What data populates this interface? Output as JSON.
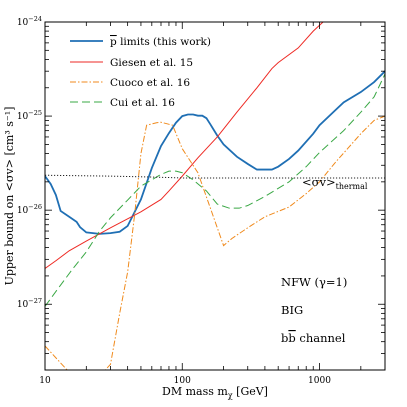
{
  "chart_data": {
    "type": "line",
    "xlabel": "DM mass m",
    "xlabel_sub": "χ",
    "xlabel_unit": " [GeV]",
    "ylabel": "Upper bound on <σv> [cm³ s⁻¹]",
    "xscale": "log",
    "yscale": "log",
    "xlim": [
      10,
      3000
    ],
    "ylim": [
      2e-28,
      1e-24
    ],
    "x_ticks": [
      {
        "value": 10,
        "label": "10"
      },
      {
        "value": 100,
        "label": "100"
      },
      {
        "value": 1000,
        "label": "1000"
      }
    ],
    "y_ticks": [
      {
        "value": 1e-24,
        "base": "10",
        "exp": "−24"
      },
      {
        "value": 1e-25,
        "base": "10",
        "exp": "−25"
      },
      {
        "value": 1e-26,
        "base": "10",
        "exp": "−26"
      },
      {
        "value": 1e-27,
        "base": "10",
        "exp": "−27"
      }
    ],
    "legend_position": "top-left",
    "series": [
      {
        "name": "p limits (this work)",
        "color": "#1f6fb4",
        "dash": "solid",
        "points": [
          [
            10,
            2.3e-26
          ],
          [
            11,
            1.9e-26
          ],
          [
            12,
            1.45e-26
          ],
          [
            13,
            9.8e-27
          ],
          [
            15,
            8.5e-27
          ],
          [
            17,
            7.5e-27
          ],
          [
            18,
            6.6e-27
          ],
          [
            20,
            5.8e-27
          ],
          [
            25,
            5.6e-27
          ],
          [
            30,
            5.7e-27
          ],
          [
            35,
            5.9e-27
          ],
          [
            40,
            6.8e-27
          ],
          [
            50,
            1.3e-26
          ],
          [
            60,
            2.8e-26
          ],
          [
            70,
            4.8e-26
          ],
          [
            80,
            6.6e-26
          ],
          [
            90,
            8.5e-26
          ],
          [
            100,
            1e-25
          ],
          [
            110,
            1.04e-25
          ],
          [
            120,
            1.04e-25
          ],
          [
            130,
            1.01e-25
          ],
          [
            140,
            1.01e-25
          ],
          [
            150,
            9.5e-26
          ],
          [
            160,
            8.2e-26
          ],
          [
            180,
            6.2e-26
          ],
          [
            200,
            5e-26
          ],
          [
            250,
            3.7e-26
          ],
          [
            300,
            3.1e-26
          ],
          [
            350,
            2.7e-26
          ],
          [
            400,
            2.7e-26
          ],
          [
            450,
            2.7e-26
          ],
          [
            500,
            2.9e-26
          ],
          [
            600,
            3.5e-26
          ],
          [
            700,
            4.3e-26
          ],
          [
            900,
            6.5e-26
          ],
          [
            1000,
            8e-26
          ],
          [
            1300,
            1.15e-25
          ],
          [
            1500,
            1.4e-25
          ],
          [
            2000,
            1.8e-25
          ],
          [
            2500,
            2.3e-25
          ],
          [
            3000,
            3e-25
          ]
        ]
      },
      {
        "name": "Giesen et al. 15",
        "color": "#ee2a24",
        "dash": "solid",
        "points": [
          [
            10,
            2.4e-27
          ],
          [
            12,
            2.9e-27
          ],
          [
            15,
            3.7e-27
          ],
          [
            20,
            4.7e-27
          ],
          [
            30,
            6.5e-27
          ],
          [
            40,
            8.1e-27
          ],
          [
            50,
            9.6e-27
          ],
          [
            70,
            1.3e-26
          ],
          [
            80,
            1.6e-26
          ],
          [
            100,
            2.3e-26
          ],
          [
            130,
            3.6e-26
          ],
          [
            180,
            6e-26
          ],
          [
            250,
            1.1e-25
          ],
          [
            350,
            2e-25
          ],
          [
            450,
            3.2e-25
          ],
          [
            500,
            3.7e-25
          ],
          [
            700,
            5.3e-25
          ],
          [
            900,
            8e-25
          ],
          [
            1100,
            1.05e-24
          ]
        ]
      },
      {
        "name": "Cuoco et al. 16",
        "color": "#f08a1c",
        "dash": "dashdot",
        "points": [
          [
            10,
            3.6e-28
          ],
          [
            20,
            1.2e-28
          ],
          [
            30,
            2.3e-28
          ],
          [
            35,
            8e-28
          ],
          [
            40,
            2.2e-27
          ],
          [
            45,
            9e-27
          ],
          [
            50,
            4e-26
          ],
          [
            55,
            8e-26
          ],
          [
            65,
            8.5e-26
          ],
          [
            70,
            8.6e-26
          ],
          [
            85,
            8e-26
          ],
          [
            100,
            4.5e-26
          ],
          [
            130,
            2.5e-26
          ],
          [
            200,
            4.2e-27
          ],
          [
            230,
            5e-27
          ],
          [
            300,
            6.5e-27
          ],
          [
            400,
            8.5e-27
          ],
          [
            600,
            1.08e-26
          ],
          [
            800,
            1.5e-26
          ],
          [
            1000,
            2e-26
          ],
          [
            1300,
            3.2e-26
          ],
          [
            1600,
            4.5e-26
          ],
          [
            2000,
            6.5e-26
          ],
          [
            2500,
            9e-26
          ],
          [
            3000,
            1e-25
          ]
        ]
      },
      {
        "name": "Cui et al. 16",
        "color": "#3aa845",
        "dash": "dashed",
        "points": [
          [
            10,
            9.5e-28
          ],
          [
            13,
            1.6e-27
          ],
          [
            16,
            2.4e-27
          ],
          [
            20,
            3.6e-27
          ],
          [
            25,
            6e-27
          ],
          [
            30,
            8.3e-27
          ],
          [
            40,
            1.28e-26
          ],
          [
            50,
            1.8e-26
          ],
          [
            60,
            2.1e-26
          ],
          [
            70,
            2.4e-26
          ],
          [
            80,
            2.6e-26
          ],
          [
            90,
            2.6e-26
          ],
          [
            100,
            2.5e-26
          ],
          [
            120,
            2.1e-26
          ],
          [
            150,
            1.6e-26
          ],
          [
            180,
            1.16e-26
          ],
          [
            220,
            1.05e-26
          ],
          [
            260,
            1.05e-26
          ],
          [
            300,
            1.12e-26
          ],
          [
            400,
            1.4e-26
          ],
          [
            600,
            2e-26
          ],
          [
            800,
            2.9e-26
          ],
          [
            1000,
            4.1e-26
          ],
          [
            1500,
            7e-26
          ],
          [
            2000,
            1.1e-25
          ],
          [
            2500,
            1.6e-25
          ],
          [
            3000,
            2.8e-25
          ]
        ]
      },
      {
        "name": "<σv>thermal",
        "color": "#222222",
        "dash": "dotted",
        "points": [
          [
            10,
            2.35e-26
          ],
          [
            30,
            2.3e-26
          ],
          [
            60,
            2.25e-26
          ],
          [
            100,
            2.2e-26
          ],
          [
            200,
            2.2e-26
          ],
          [
            500,
            2.2e-26
          ],
          [
            1000,
            2.2e-26
          ],
          [
            3000,
            2.2e-26
          ]
        ]
      }
    ],
    "legend": [
      {
        "label": "p limits (this work)",
        "overline_char": "p",
        "rest": " limits (this work)"
      },
      {
        "label": "Giesen et al. 15"
      },
      {
        "label": "Cuoco et al. 16"
      },
      {
        "label": "Cui et al. 16"
      }
    ],
    "annotations": {
      "thermal_label_main": "<σv>",
      "thermal_label_sub": "thermal",
      "model_line1": "NFW (γ=1)",
      "model_line2": "BIG",
      "channel_prefix": "b",
      "channel_bar": "b",
      "channel_suffix": " channel"
    }
  }
}
